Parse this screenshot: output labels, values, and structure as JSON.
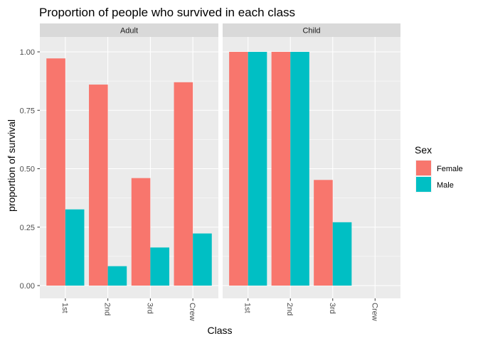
{
  "chart_data": {
    "type": "bar",
    "title": "Proportion of people who survived in each class",
    "xlabel": "Class",
    "ylabel": "proportion of survival",
    "ylim": [
      0,
      1.0
    ],
    "y_ticks": [
      "0.00",
      "0.25",
      "0.50",
      "0.75",
      "1.00"
    ],
    "categories": [
      "1st",
      "2nd",
      "3rd",
      "Crew"
    ],
    "grid": true,
    "legend": {
      "title": "Sex",
      "position": "right",
      "entries": [
        {
          "name": "Female",
          "color": "#F8766D"
        },
        {
          "name": "Male",
          "color": "#00BFC4"
        }
      ]
    },
    "facets": [
      {
        "label": "Adult",
        "series": [
          {
            "name": "Female",
            "values": [
              0.972,
              0.86,
              0.46,
              0.87
            ]
          },
          {
            "name": "Male",
            "values": [
              0.326,
              0.083,
              0.163,
              0.223
            ]
          }
        ]
      },
      {
        "label": "Child",
        "series": [
          {
            "name": "Female",
            "values": [
              1.0,
              1.0,
              0.452,
              null
            ]
          },
          {
            "name": "Male",
            "values": [
              1.0,
              1.0,
              0.271,
              null
            ]
          }
        ]
      }
    ]
  }
}
